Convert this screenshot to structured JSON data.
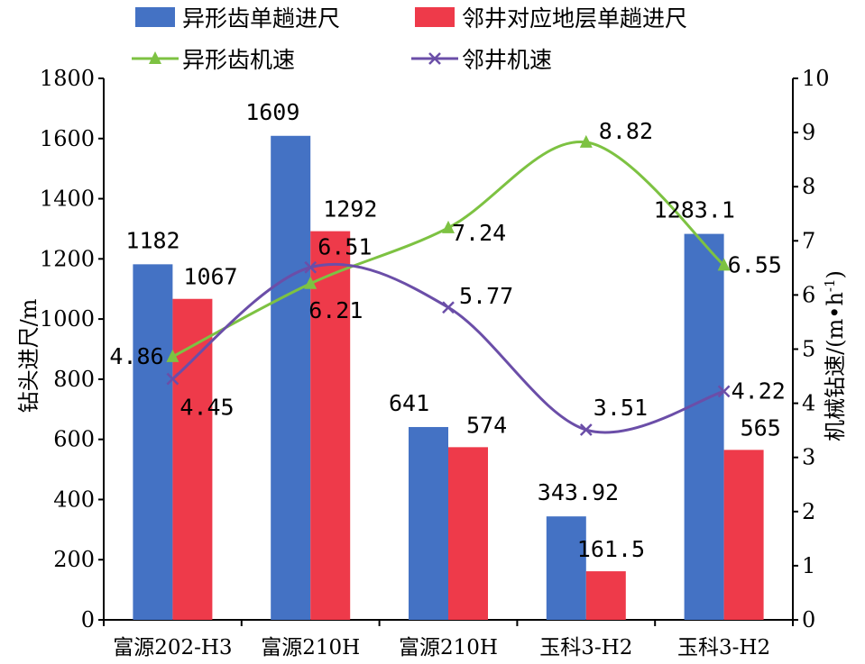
{
  "chart_data": {
    "type": "bar",
    "categories": [
      "富源202-H3",
      "富源210H",
      "富源210H",
      "玉科3-H2",
      "玉科3-H2"
    ],
    "series": [
      {
        "name": "异形齿单趟进尺",
        "kind": "bar",
        "axis": "left",
        "color": "#4472C4",
        "values": [
          1182,
          1609,
          641,
          343.92,
          1283.1
        ],
        "labels": [
          "1182",
          "1609",
          "641",
          "343.92",
          "1283.1"
        ]
      },
      {
        "name": "邻井对应地层单趟进尺",
        "kind": "bar",
        "axis": "left",
        "color": "#EE3A4A",
        "values": [
          1067,
          1292,
          574,
          161.5,
          565
        ],
        "labels": [
          "1067",
          "1292",
          "574",
          "161.5",
          "565"
        ]
      },
      {
        "name": "异形齿机速",
        "kind": "line",
        "axis": "right",
        "color": "#7DC242",
        "marker": "triangle",
        "values": [
          4.86,
          6.21,
          7.24,
          8.82,
          6.55
        ],
        "labels": [
          "4.86",
          "6.21",
          "7.24",
          "8.82",
          "6.55"
        ]
      },
      {
        "name": "邻井机速",
        "kind": "line",
        "axis": "right",
        "color": "#6B4EA8",
        "marker": "x",
        "values": [
          4.45,
          6.51,
          5.77,
          3.51,
          4.22
        ],
        "labels": [
          "4.45",
          "6.51",
          "5.77",
          "3.51",
          "4.22"
        ]
      }
    ],
    "ylabel": "钻头进尺/m",
    "y2label_main": "机械钻速/(m•h",
    "y2label_sup": "-1",
    "y2label_close": ")",
    "ylim": [
      0,
      1800
    ],
    "y2lim": [
      0,
      10
    ],
    "yticks": [
      "0",
      "200",
      "400",
      "600",
      "800",
      "1000",
      "1200",
      "1400",
      "1600",
      "1800"
    ],
    "y2ticks": [
      "0",
      "1",
      "2",
      "3",
      "4",
      "5",
      "6",
      "7",
      "8",
      "9",
      "10"
    ],
    "grid": false,
    "legend_position": "top"
  }
}
